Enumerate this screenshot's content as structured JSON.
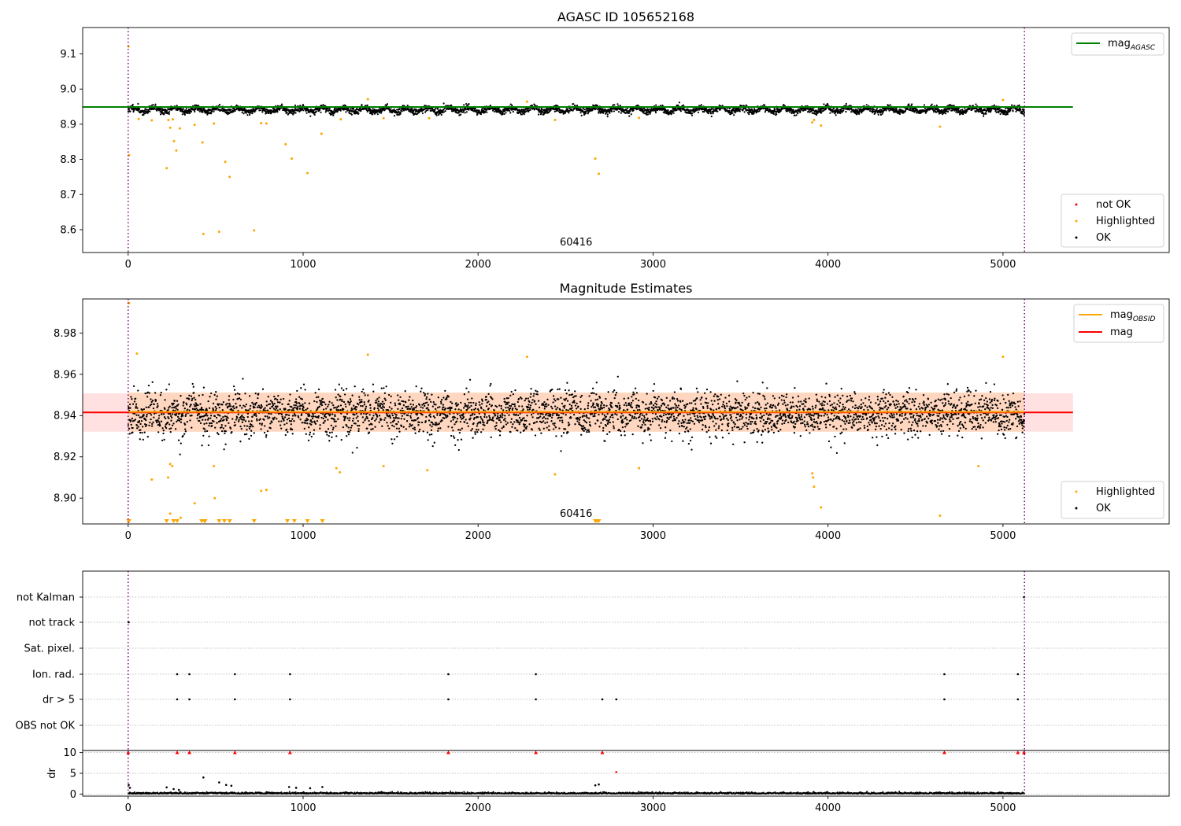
{
  "chart_data": [
    {
      "id": "p1",
      "type": "scatter",
      "title": "AGASC ID 105652168",
      "xlim": [
        -260,
        5950
      ],
      "ylim": [
        8.535,
        9.175
      ],
      "xticks": [
        0,
        1000,
        2000,
        3000,
        4000,
        5000
      ],
      "yticks": [
        8.6,
        8.7,
        8.8,
        8.9,
        9.0,
        9.1
      ],
      "ytick_labels": [
        "8.6",
        "8.7",
        "8.8",
        "8.9",
        "9.0",
        "9.1"
      ],
      "grid": false,
      "vlines": [
        0,
        5123
      ],
      "obsid_label": {
        "text": "60416",
        "x": 2560
      },
      "ok_band": {
        "center": 8.941,
        "halfwidth": 0.008,
        "x_start": 0,
        "x_end": 5123,
        "wave_amplitude": 0.008
      },
      "hlines": [
        {
          "name": "mag_AGASC",
          "y": 8.949,
          "x_start": -260,
          "x_end": 5400,
          "color": "#008000"
        }
      ],
      "highlighted_points": [
        [
          2,
          9.121
        ],
        [
          5,
          8.812
        ],
        [
          60,
          8.915
        ],
        [
          135,
          8.911
        ],
        [
          220,
          8.775
        ],
        [
          230,
          8.912
        ],
        [
          240,
          8.89
        ],
        [
          255,
          8.914
        ],
        [
          262,
          8.852
        ],
        [
          275,
          8.825
        ],
        [
          295,
          8.888
        ],
        [
          380,
          8.898
        ],
        [
          425,
          8.848
        ],
        [
          430,
          8.588
        ],
        [
          490,
          8.902
        ],
        [
          520,
          8.594
        ],
        [
          555,
          8.793
        ],
        [
          580,
          8.75
        ],
        [
          720,
          8.598
        ],
        [
          760,
          8.903
        ],
        [
          790,
          8.902
        ],
        [
          900,
          8.843
        ],
        [
          935,
          8.802
        ],
        [
          1025,
          8.761
        ],
        [
          1105,
          8.873
        ],
        [
          1215,
          8.914
        ],
        [
          1370,
          8.971
        ],
        [
          1460,
          8.917
        ],
        [
          1720,
          8.917
        ],
        [
          2280,
          8.964
        ],
        [
          2440,
          8.912
        ],
        [
          2670,
          8.802
        ],
        [
          2690,
          8.759
        ],
        [
          2920,
          8.918
        ],
        [
          3910,
          8.905
        ],
        [
          3920,
          8.912
        ],
        [
          3960,
          8.896
        ],
        [
          4640,
          8.893
        ],
        [
          5000,
          8.969
        ]
      ],
      "legend": {
        "upper": [
          {
            "name": "mag",
            "subscript": "AGASC",
            "color": "#008000",
            "kind": "line"
          }
        ],
        "lower": [
          {
            "name": "not OK",
            "color": "#ff0000",
            "kind": "marker"
          },
          {
            "name": "Highlighted",
            "color": "#ffa500",
            "kind": "marker"
          },
          {
            "name": "OK",
            "color": "#000000",
            "kind": "marker"
          }
        ]
      }
    },
    {
      "id": "p2",
      "type": "scatter",
      "title": "Magnitude Estimates",
      "xlim": [
        -260,
        5950
      ],
      "ylim": [
        8.8875,
        8.9965
      ],
      "xticks": [
        0,
        1000,
        2000,
        3000,
        4000,
        5000
      ],
      "yticks": [
        8.9,
        8.92,
        8.94,
        8.96,
        8.98
      ],
      "ytick_labels": [
        "8.90",
        "8.92",
        "8.94",
        "8.96",
        "8.98"
      ],
      "grid": false,
      "vlines": [
        0,
        5123
      ],
      "obsid_label": {
        "text": "60416",
        "x": 2560
      },
      "ok_band": {
        "center": 8.941,
        "halfwidth": 0.008,
        "x_start": 0,
        "x_end": 5123,
        "wave_amplitude": 0.008
      },
      "mag_line": {
        "name": "mag",
        "y": 8.9415,
        "x_start": -260,
        "x_end": 5400,
        "color": "#ff0000",
        "band": [
          8.9322,
          8.9508
        ],
        "band_color": "#ffc8c8"
      },
      "mag_obsid_line": {
        "name": "mag_OBSID",
        "y": 8.9418,
        "x_start": 0,
        "x_end": 5123,
        "color": "#ffa500",
        "band": [
          8.9322,
          8.9512
        ],
        "band_color": "#ffd2b0"
      },
      "highlighted_points": [
        [
          2,
          8.9945
        ],
        [
          5,
          8.9945
        ],
        [
          50,
          8.97
        ],
        [
          135,
          8.909
        ],
        [
          228,
          8.91
        ],
        [
          240,
          8.9165
        ],
        [
          252,
          8.9155
        ],
        [
          240,
          8.8925
        ],
        [
          300,
          8.8905
        ],
        [
          380,
          8.8975
        ],
        [
          490,
          8.9155
        ],
        [
          495,
          8.9
        ],
        [
          760,
          8.9035
        ],
        [
          790,
          8.904
        ],
        [
          1190,
          8.9145
        ],
        [
          1210,
          8.9125
        ],
        [
          1370,
          8.9695
        ],
        [
          1460,
          8.9155
        ],
        [
          1710,
          8.9135
        ],
        [
          2280,
          8.9685
        ],
        [
          2440,
          8.9115
        ],
        [
          2920,
          8.9145
        ],
        [
          3910,
          8.912
        ],
        [
          3915,
          8.91
        ],
        [
          3920,
          8.9055
        ],
        [
          3960,
          8.8955
        ],
        [
          4640,
          8.8915
        ],
        [
          4860,
          8.9155
        ],
        [
          5000,
          8.9685
        ]
      ],
      "clipped_low_x": [
        2,
        5,
        220,
        260,
        280,
        420,
        435,
        440,
        520,
        550,
        580,
        720,
        910,
        950,
        1025,
        1110,
        2670,
        2680,
        2690
      ],
      "legend": {
        "upper": [
          {
            "name": "mag",
            "subscript": "OBSID",
            "color": "#ffa500",
            "kind": "line"
          },
          {
            "name": "mag",
            "subscript": "",
            "color": "#ff0000",
            "kind": "line"
          }
        ],
        "lower": [
          {
            "name": "Highlighted",
            "color": "#ffa500",
            "kind": "marker"
          },
          {
            "name": "OK",
            "color": "#000000",
            "kind": "marker"
          }
        ]
      }
    },
    {
      "id": "p3",
      "type": "scatter",
      "title": "",
      "xlim": [
        -260,
        5950
      ],
      "categories": [
        "not Kalman",
        "not track",
        "Sat. pixel.",
        "Ion. rad.",
        "dr > 5",
        "OBS not OK"
      ],
      "grid": true,
      "vlines": [
        0,
        5123
      ],
      "flag_points": {
        "not Kalman": [
          5120
        ],
        "not track": [
          3
        ],
        "Sat. pixel.": [],
        "Ion. rad.": [
          280,
          350,
          610,
          925,
          1830,
          2330,
          4665,
          5085
        ],
        "dr > 5": [
          280,
          350,
          610,
          925,
          1830,
          2330,
          2710,
          2790,
          4665,
          5085
        ],
        "OBS not OK": []
      }
    },
    {
      "id": "p4",
      "type": "scatter",
      "title": "",
      "xlim": [
        -260,
        5950
      ],
      "ylim": [
        -0.5,
        10.5
      ],
      "xticks": [
        0,
        1000,
        2000,
        3000,
        4000,
        5000
      ],
      "yticks": [
        0,
        5,
        10
      ],
      "ytick_labels": [
        "0",
        "5",
        "10"
      ],
      "ylabel": "dr",
      "grid": true,
      "vlines": [
        0,
        5123
      ],
      "clip_threshold": 10,
      "outliers": [
        [
          3,
          2.2
        ],
        [
          10,
          1.5
        ],
        [
          220,
          1.6
        ],
        [
          260,
          1.2
        ],
        [
          290,
          1.0
        ],
        [
          430,
          4.0
        ],
        [
          520,
          2.8
        ],
        [
          560,
          2.2
        ],
        [
          590,
          2.0
        ],
        [
          920,
          1.7
        ],
        [
          960,
          1.5
        ],
        [
          1040,
          1.4
        ],
        [
          1110,
          1.7
        ],
        [
          2670,
          2.1
        ],
        [
          2690,
          2.3
        ],
        [
          2790,
          5.3
        ]
      ],
      "clipped_x": [
        0,
        280,
        350,
        610,
        925,
        1830,
        2330,
        2710,
        4665,
        5085,
        5120
      ]
    }
  ]
}
